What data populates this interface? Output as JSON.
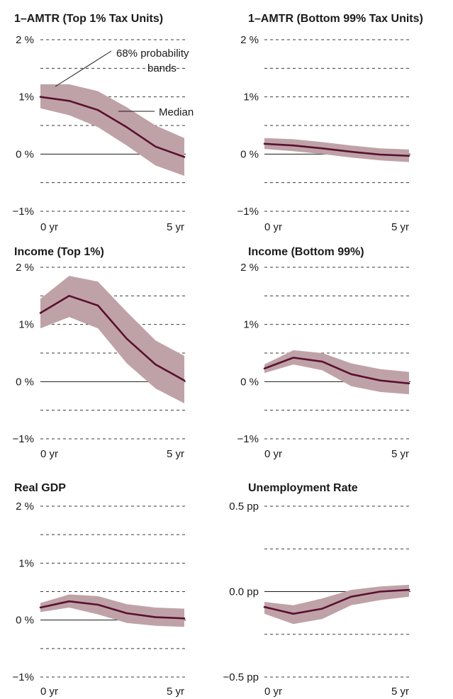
{
  "colors": {
    "band": "#bfa2a7",
    "median": "#5a1030",
    "grid": "#3a3a3a",
    "zero": "#1a1a1a"
  },
  "annotations": {
    "bands_line1": "68% probability",
    "bands_line2": "bands",
    "median": "Median"
  },
  "chart_data": [
    {
      "type": "line",
      "title": "1–AMTR (Top 1% Tax Units)",
      "x": [
        0,
        1,
        2,
        3,
        4,
        5
      ],
      "xticks": [
        "0 yr",
        "5 yr"
      ],
      "ylim": [
        -1,
        2
      ],
      "yticks": [
        -1,
        0,
        1,
        2
      ],
      "yticklabels": [
        "−1%",
        "0 %",
        "1%",
        "2 %"
      ],
      "grid": true,
      "series": [
        {
          "name": "Median",
          "values": [
            1.0,
            0.93,
            0.77,
            0.47,
            0.13,
            -0.05
          ]
        },
        {
          "name": "68% probability bands",
          "upper": [
            1.22,
            1.22,
            1.1,
            0.82,
            0.5,
            0.28
          ],
          "lower": [
            0.8,
            0.68,
            0.47,
            0.15,
            -0.2,
            -0.38
          ]
        }
      ]
    },
    {
      "type": "line",
      "title": "1–AMTR (Bottom 99% Tax Units)",
      "x": [
        0,
        1,
        2,
        3,
        4,
        5
      ],
      "xticks": [
        "0 yr",
        "5 yr"
      ],
      "ylim": [
        -1,
        2
      ],
      "yticks": [
        -1,
        0,
        1,
        2
      ],
      "yticklabels": [
        "−1%",
        "0 %",
        "1%",
        "2 %"
      ],
      "grid": true,
      "series": [
        {
          "name": "Median",
          "values": [
            0.18,
            0.15,
            0.1,
            0.04,
            -0.01,
            -0.03
          ]
        },
        {
          "name": "68% probability bands",
          "upper": [
            0.28,
            0.26,
            0.21,
            0.15,
            0.1,
            0.08
          ],
          "lower": [
            0.09,
            0.05,
            0.0,
            -0.06,
            -0.11,
            -0.14
          ]
        }
      ]
    },
    {
      "type": "line",
      "title": "Income (Top 1%)",
      "x": [
        0,
        1,
        2,
        3,
        4,
        5
      ],
      "xticks": [
        "0 yr",
        "5 yr"
      ],
      "ylim": [
        -1,
        2
      ],
      "yticks": [
        -1,
        0,
        1,
        2
      ],
      "yticklabels": [
        "−1%",
        "0 %",
        "1%",
        "2 %"
      ],
      "grid": true,
      "series": [
        {
          "name": "Median",
          "values": [
            1.2,
            1.5,
            1.33,
            0.75,
            0.3,
            0.02
          ]
        },
        {
          "name": "68% probability bands",
          "upper": [
            1.45,
            1.85,
            1.75,
            1.22,
            0.72,
            0.45
          ],
          "lower": [
            0.93,
            1.13,
            0.93,
            0.32,
            -0.12,
            -0.38
          ]
        }
      ]
    },
    {
      "type": "line",
      "title": "Income (Bottom 99%)",
      "x": [
        0,
        1,
        2,
        3,
        4,
        5
      ],
      "xticks": [
        "0 yr",
        "5 yr"
      ],
      "ylim": [
        -1,
        2
      ],
      "yticks": [
        -1,
        0,
        1,
        2
      ],
      "yticklabels": [
        "−1%",
        "0 %",
        "1%",
        "2 %"
      ],
      "grid": true,
      "series": [
        {
          "name": "Median",
          "values": [
            0.23,
            0.42,
            0.35,
            0.13,
            0.02,
            -0.03
          ]
        },
        {
          "name": "68% probability bands",
          "upper": [
            0.3,
            0.55,
            0.5,
            0.32,
            0.22,
            0.17
          ],
          "lower": [
            0.15,
            0.3,
            0.2,
            -0.08,
            -0.18,
            -0.22
          ]
        }
      ]
    },
    {
      "type": "line",
      "title": "Real GDP",
      "x": [
        0,
        1,
        2,
        3,
        4,
        5
      ],
      "xticks": [
        "0 yr",
        "5 yr"
      ],
      "ylim": [
        -1,
        2
      ],
      "yticks": [
        -1,
        0,
        1,
        2
      ],
      "yticklabels": [
        "−1%",
        "0 %",
        "1%",
        "2 %"
      ],
      "grid": true,
      "series": [
        {
          "name": "Median",
          "values": [
            0.22,
            0.33,
            0.27,
            0.12,
            0.05,
            0.03
          ]
        },
        {
          "name": "68% probability bands",
          "upper": [
            0.3,
            0.45,
            0.42,
            0.28,
            0.22,
            0.2
          ],
          "lower": [
            0.14,
            0.22,
            0.1,
            -0.05,
            -0.1,
            -0.12
          ]
        }
      ]
    },
    {
      "type": "line",
      "title": "Unemployment Rate",
      "x": [
        0,
        1,
        2,
        3,
        4,
        5
      ],
      "xticks": [
        "0 yr",
        "5 yr"
      ],
      "ylim": [
        -0.5,
        0.5
      ],
      "yticks": [
        -0.5,
        0.0,
        0.5
      ],
      "yticklabels": [
        "−0.5 pp",
        "0.0 pp",
        "0.5 pp"
      ],
      "grid": true,
      "series": [
        {
          "name": "Median",
          "values": [
            -0.09,
            -0.13,
            -0.1,
            -0.03,
            0.0,
            0.01
          ]
        },
        {
          "name": "68% probability bands",
          "upper": [
            -0.06,
            -0.08,
            -0.04,
            0.01,
            0.03,
            0.04
          ],
          "lower": [
            -0.13,
            -0.19,
            -0.16,
            -0.08,
            -0.05,
            -0.03
          ]
        }
      ]
    }
  ]
}
